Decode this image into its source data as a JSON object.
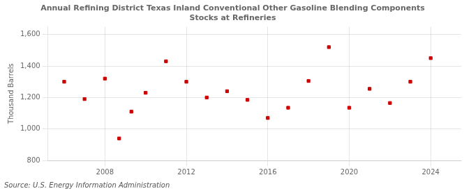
{
  "chart_data": {
    "type": "scatter",
    "title": "Annual Refining District Texas Inland Conventional Other Gasoline Blending Components\nStocks at Refineries",
    "ylabel": "Thousand Barrels",
    "annotation": "Source: U.S. Energy Information Administration",
    "x": [
      2006,
      2007,
      2008,
      2008.7,
      2009.3,
      2010,
      2011,
      2012,
      2013,
      2014,
      2015,
      2016,
      2017,
      2018,
      2019,
      2020,
      2021,
      2022,
      2023,
      2024
    ],
    "values": [
      1300,
      1190,
      1320,
      940,
      1110,
      1230,
      1430,
      1300,
      1200,
      1240,
      1185,
      1070,
      1135,
      1305,
      1520,
      1135,
      1255,
      1165,
      1300,
      1450
    ],
    "color": "#cc0000",
    "marker": "square",
    "xlim": [
      2005.2,
      2025.5
    ],
    "ylim": [
      800,
      1650
    ],
    "xticks": [
      2008,
      2012,
      2016,
      2020,
      2024
    ],
    "yticks": [
      800,
      {
        "value": 1000,
        "label": "1,000"
      },
      {
        "value": 1200,
        "label": "1,200"
      },
      {
        "value": 1400,
        "label": "1,400"
      },
      {
        "value": 1600,
        "label": "1,600"
      }
    ],
    "grid": true
  }
}
